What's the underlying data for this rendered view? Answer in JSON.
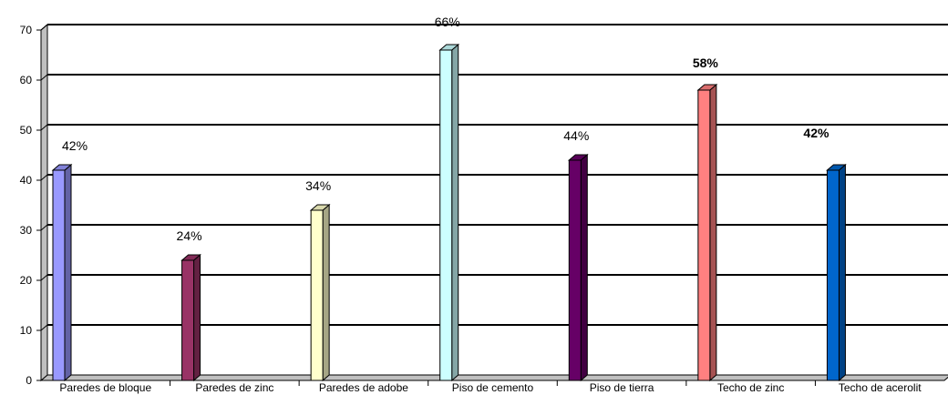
{
  "chart_data": {
    "type": "bar",
    "categories": [
      "Paredes de bloque",
      "Paredes de zinc",
      "Paredes de adobe",
      "Piso de cemento",
      "Piso de tierra",
      "Techo de zinc",
      "Techo de acerolit"
    ],
    "values": [
      42,
      24,
      34,
      66,
      44,
      58,
      42
    ],
    "data_labels": [
      "42%",
      "24%",
      "34%",
      "66%",
      "44%",
      "58%",
      "42%"
    ],
    "bold_labels": [
      false,
      false,
      false,
      false,
      false,
      true,
      true
    ],
    "colors": [
      "#9999ff",
      "#993366",
      "#ffffcc",
      "#ccffff",
      "#660066",
      "#ff8080",
      "#0066cc"
    ],
    "y_ticks": [
      "0",
      "10",
      "20",
      "30",
      "40",
      "50",
      "60",
      "70"
    ],
    "ylim": [
      0,
      70
    ],
    "grid": true,
    "legend": "none"
  }
}
